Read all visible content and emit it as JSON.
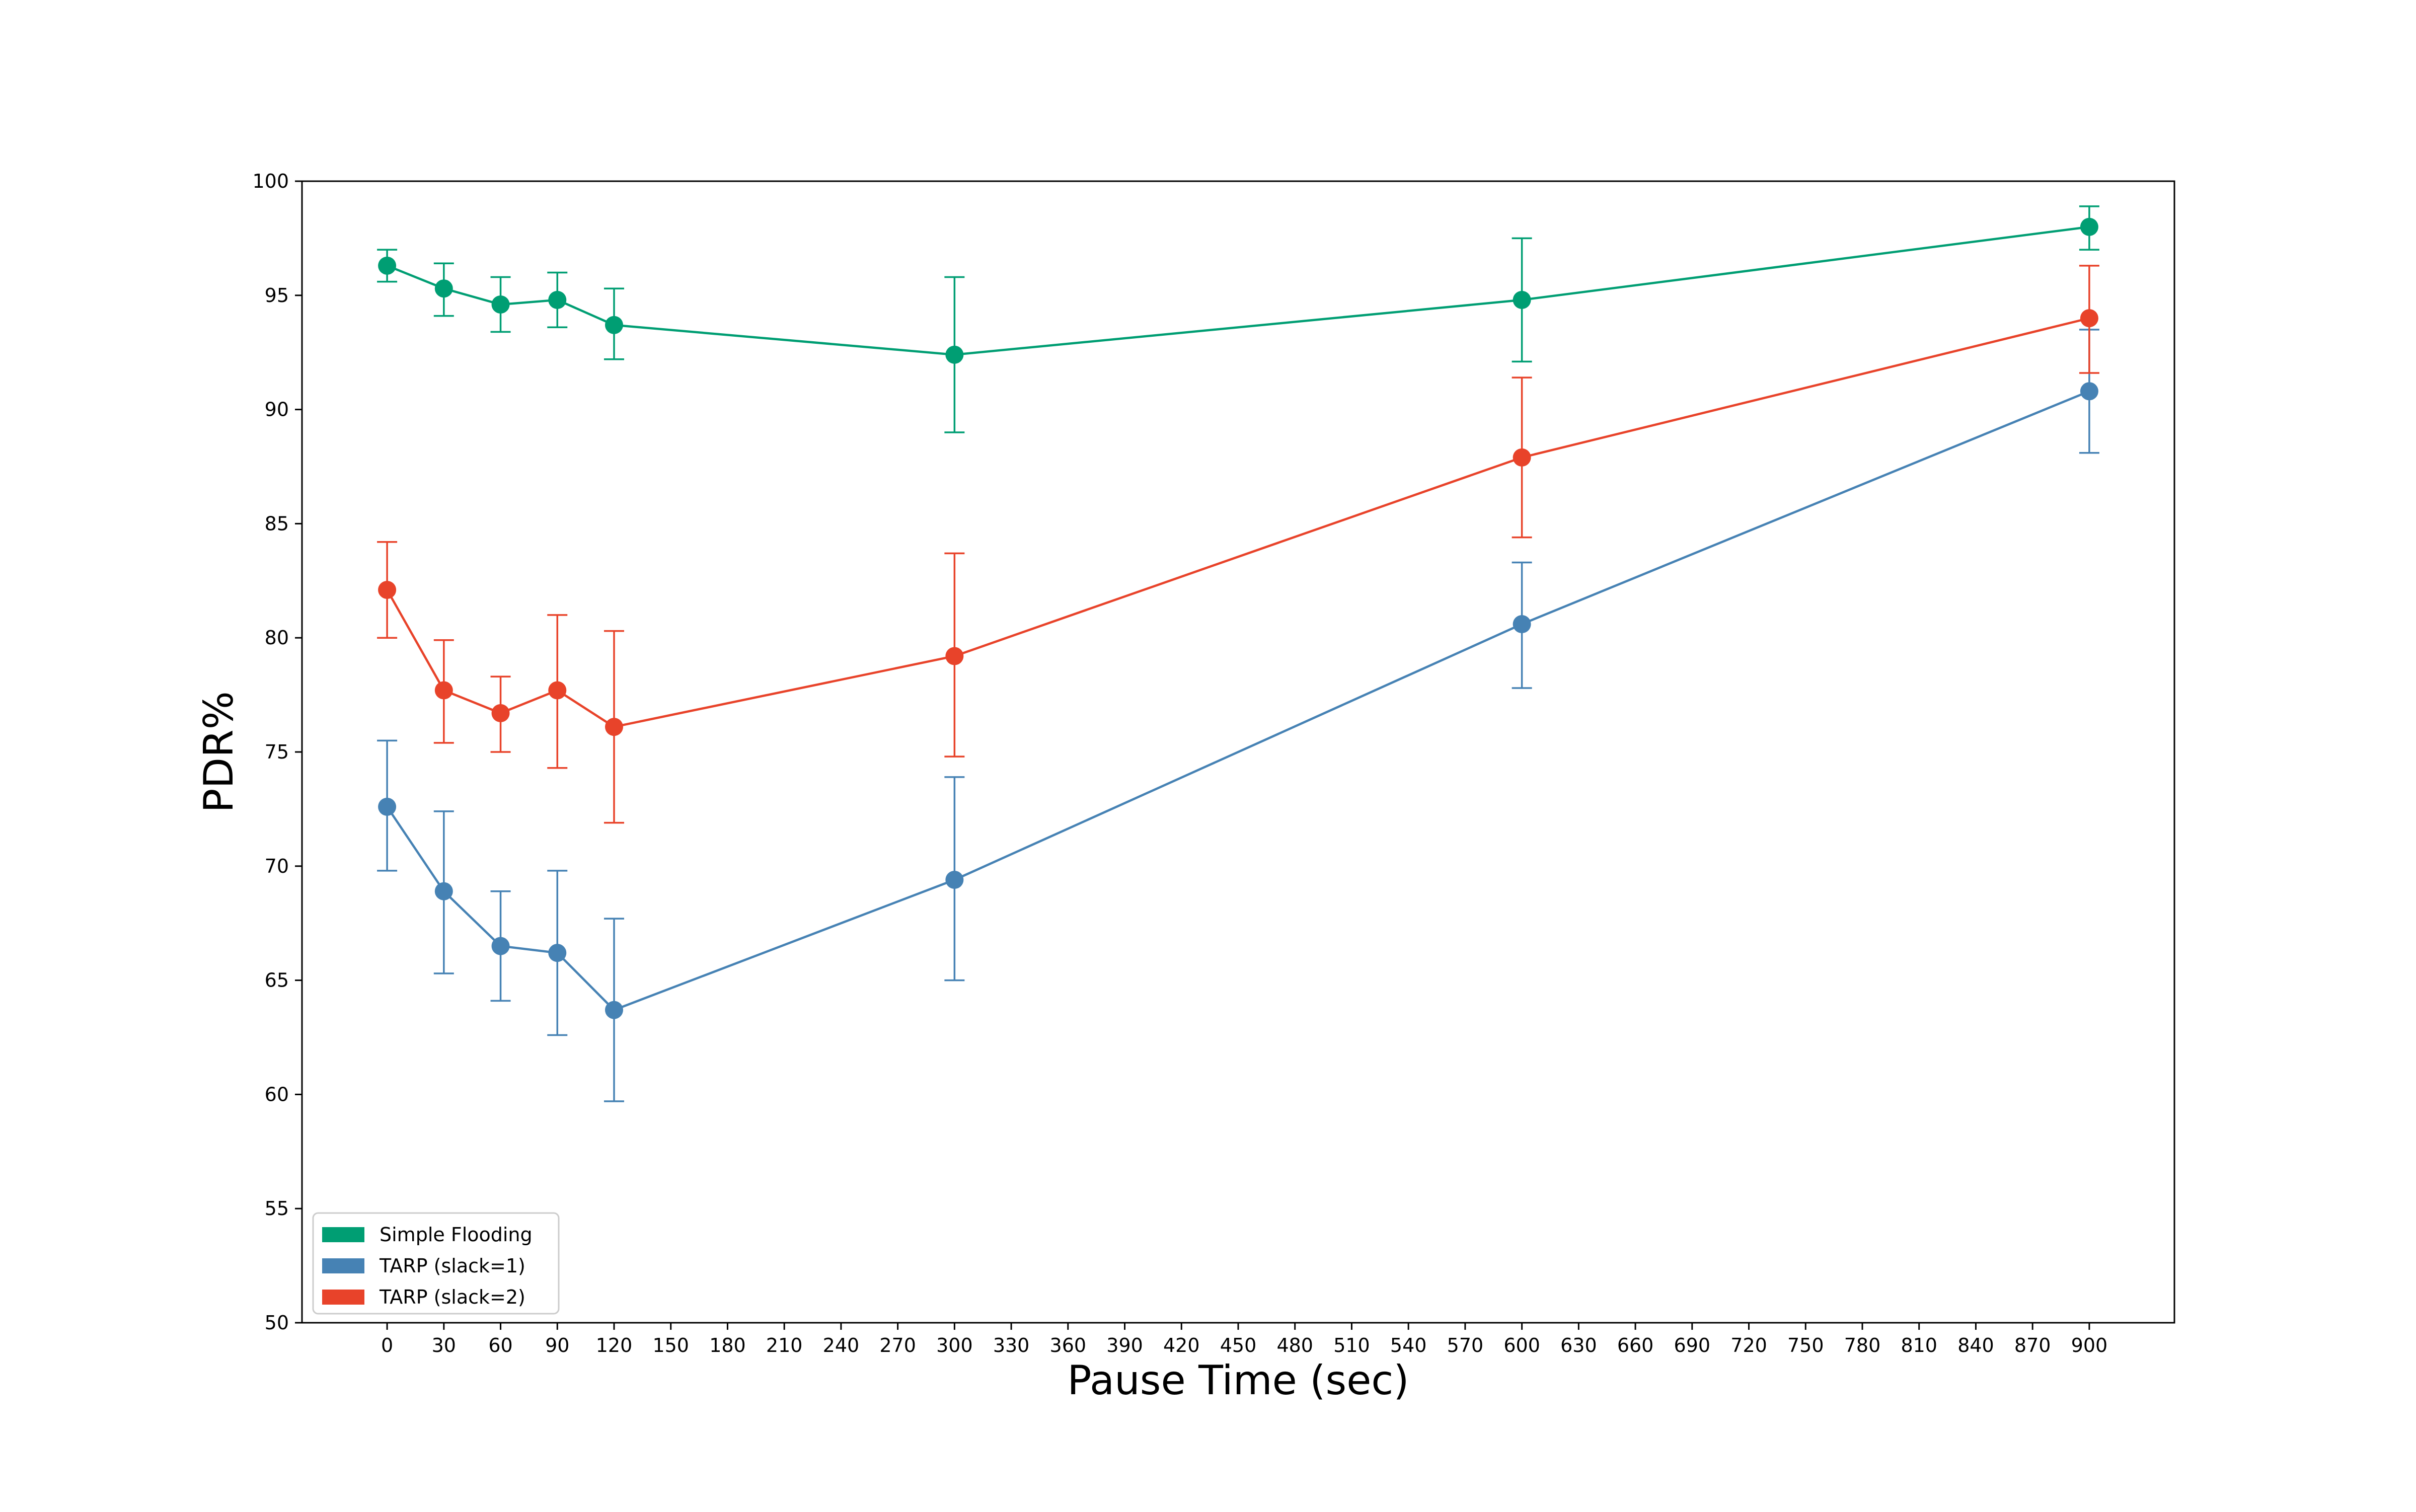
{
  "chart_data": {
    "type": "line",
    "title": "",
    "xlabel": "Pause Time (sec)",
    "ylabel": "PDR%",
    "xlim": [
      -45,
      945
    ],
    "ylim": [
      50,
      100
    ],
    "xticks": [
      0,
      30,
      60,
      90,
      120,
      150,
      180,
      210,
      240,
      270,
      300,
      330,
      360,
      390,
      420,
      450,
      480,
      510,
      540,
      570,
      600,
      630,
      660,
      690,
      720,
      750,
      780,
      810,
      840,
      870,
      900
    ],
    "yticks": [
      50,
      55,
      60,
      65,
      70,
      75,
      80,
      85,
      90,
      95,
      100
    ],
    "grid": false,
    "legend_position": "lower-left",
    "x": [
      0,
      30,
      60,
      90,
      120,
      300,
      600,
      900
    ],
    "series": [
      {
        "name": "Simple Flooding",
        "color": "#009e73",
        "values": [
          96.3,
          95.3,
          94.6,
          94.8,
          93.7,
          92.4,
          94.8,
          98.0
        ],
        "err_low": [
          95.6,
          94.1,
          93.4,
          93.6,
          92.2,
          89.0,
          92.1,
          97.0
        ],
        "err_high": [
          97.0,
          96.4,
          95.8,
          96.0,
          95.3,
          95.8,
          97.5,
          98.9
        ]
      },
      {
        "name": "TARP (slack=1)",
        "color": "#4682b4",
        "values": [
          72.6,
          68.9,
          66.5,
          66.2,
          63.7,
          69.4,
          80.6,
          90.8
        ],
        "err_low": [
          69.8,
          65.3,
          64.1,
          62.6,
          59.7,
          65.0,
          77.8,
          88.1
        ],
        "err_high": [
          75.5,
          72.4,
          68.9,
          69.8,
          67.7,
          73.9,
          83.3,
          93.5
        ]
      },
      {
        "name": "TARP (slack=2)",
        "color": "#e8432a",
        "values": [
          82.1,
          77.7,
          76.7,
          77.7,
          76.1,
          79.2,
          87.9,
          94.0
        ],
        "err_low": [
          80.0,
          75.4,
          75.0,
          74.3,
          71.9,
          74.8,
          84.4,
          91.6
        ],
        "err_high": [
          84.2,
          79.9,
          78.3,
          81.0,
          80.3,
          83.7,
          91.4,
          96.3
        ]
      }
    ]
  }
}
